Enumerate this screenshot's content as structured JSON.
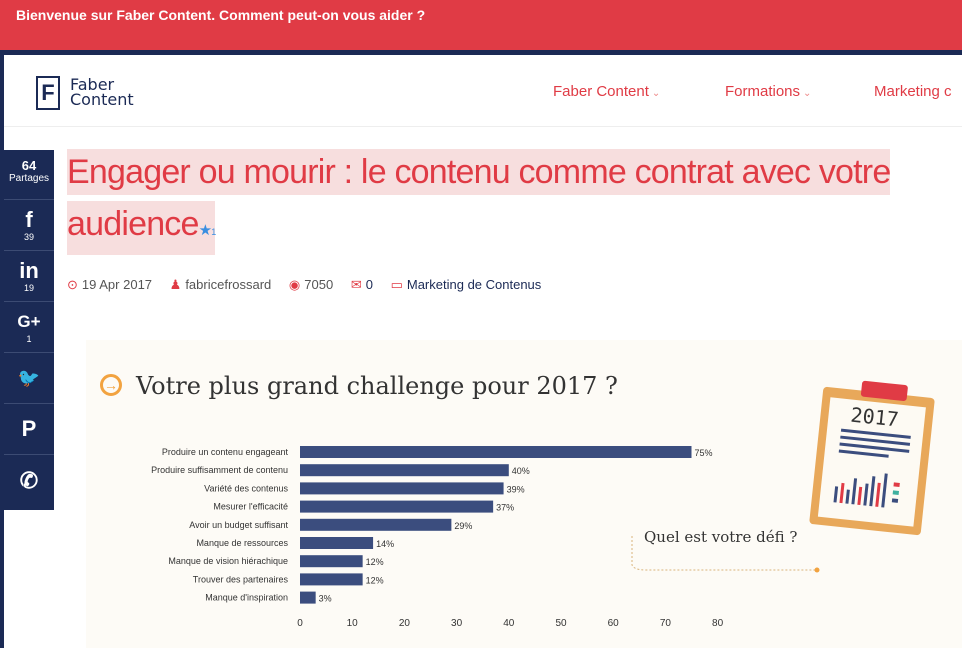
{
  "topbar": {
    "message": "Bienvenue sur Faber Content. Comment peut-on vous aider ?"
  },
  "logo": {
    "letter": "F",
    "line1": "Faber",
    "line2": "Content"
  },
  "nav": {
    "items": [
      {
        "label": "Faber Content",
        "chevron": "⌄"
      },
      {
        "label": "Formations",
        "chevron": "⌄"
      },
      {
        "label": "Marketing c"
      }
    ]
  },
  "share": {
    "total": "64",
    "total_label": "Partages",
    "buttons": [
      {
        "icon": "facebook-icon",
        "glyph": "f",
        "count": "39"
      },
      {
        "icon": "linkedin-icon",
        "glyph": "in",
        "count": "19"
      },
      {
        "icon": "google-plus-icon",
        "glyph": "G+",
        "count": "1"
      },
      {
        "icon": "twitter-icon",
        "glyph": "🐦",
        "count": ""
      },
      {
        "icon": "pinterest-icon",
        "glyph": "P",
        "count": ""
      },
      {
        "icon": "whatsapp-icon",
        "glyph": "✆",
        "count": ""
      }
    ]
  },
  "article": {
    "title_line1": "Engager ou mourir : le contenu comme contrat avec votre",
    "title_line2": "audience",
    "star_count": "1",
    "date": "19 Apr 2017",
    "author": "fabricefrossard",
    "views": "7050",
    "comments": "0",
    "category": "Marketing de Contenus"
  },
  "infographic": {
    "title": "Votre plus grand challenge pour 2017 ?",
    "question": "Quel est votre défi ?",
    "clipboard_year": "2017"
  },
  "colors": {
    "accent": "#e03b45",
    "navy": "#1b2a55",
    "bar": "#3b4d7e"
  },
  "chart_data": {
    "type": "bar",
    "orientation": "horizontal",
    "categories": [
      "Produire un contenu engageant",
      "Produire suffisamment de contenu",
      "Variété des contenus",
      "Mesurer l'efficacité",
      "Avoir un budget suffisant",
      "Manque de ressources",
      "Manque de vision hiérachique",
      "Trouver des partenaires",
      "Manque d'inspiration"
    ],
    "values": [
      75,
      40,
      39,
      37,
      29,
      14,
      12,
      12,
      3
    ],
    "value_labels": [
      "75%",
      "40%",
      "39%",
      "37%",
      "29%",
      "14%",
      "12%",
      "12%",
      "3%"
    ],
    "xlim": [
      0,
      80
    ],
    "xticks": [
      "0",
      "10",
      "20",
      "30",
      "40",
      "50",
      "60",
      "70",
      "80"
    ]
  }
}
